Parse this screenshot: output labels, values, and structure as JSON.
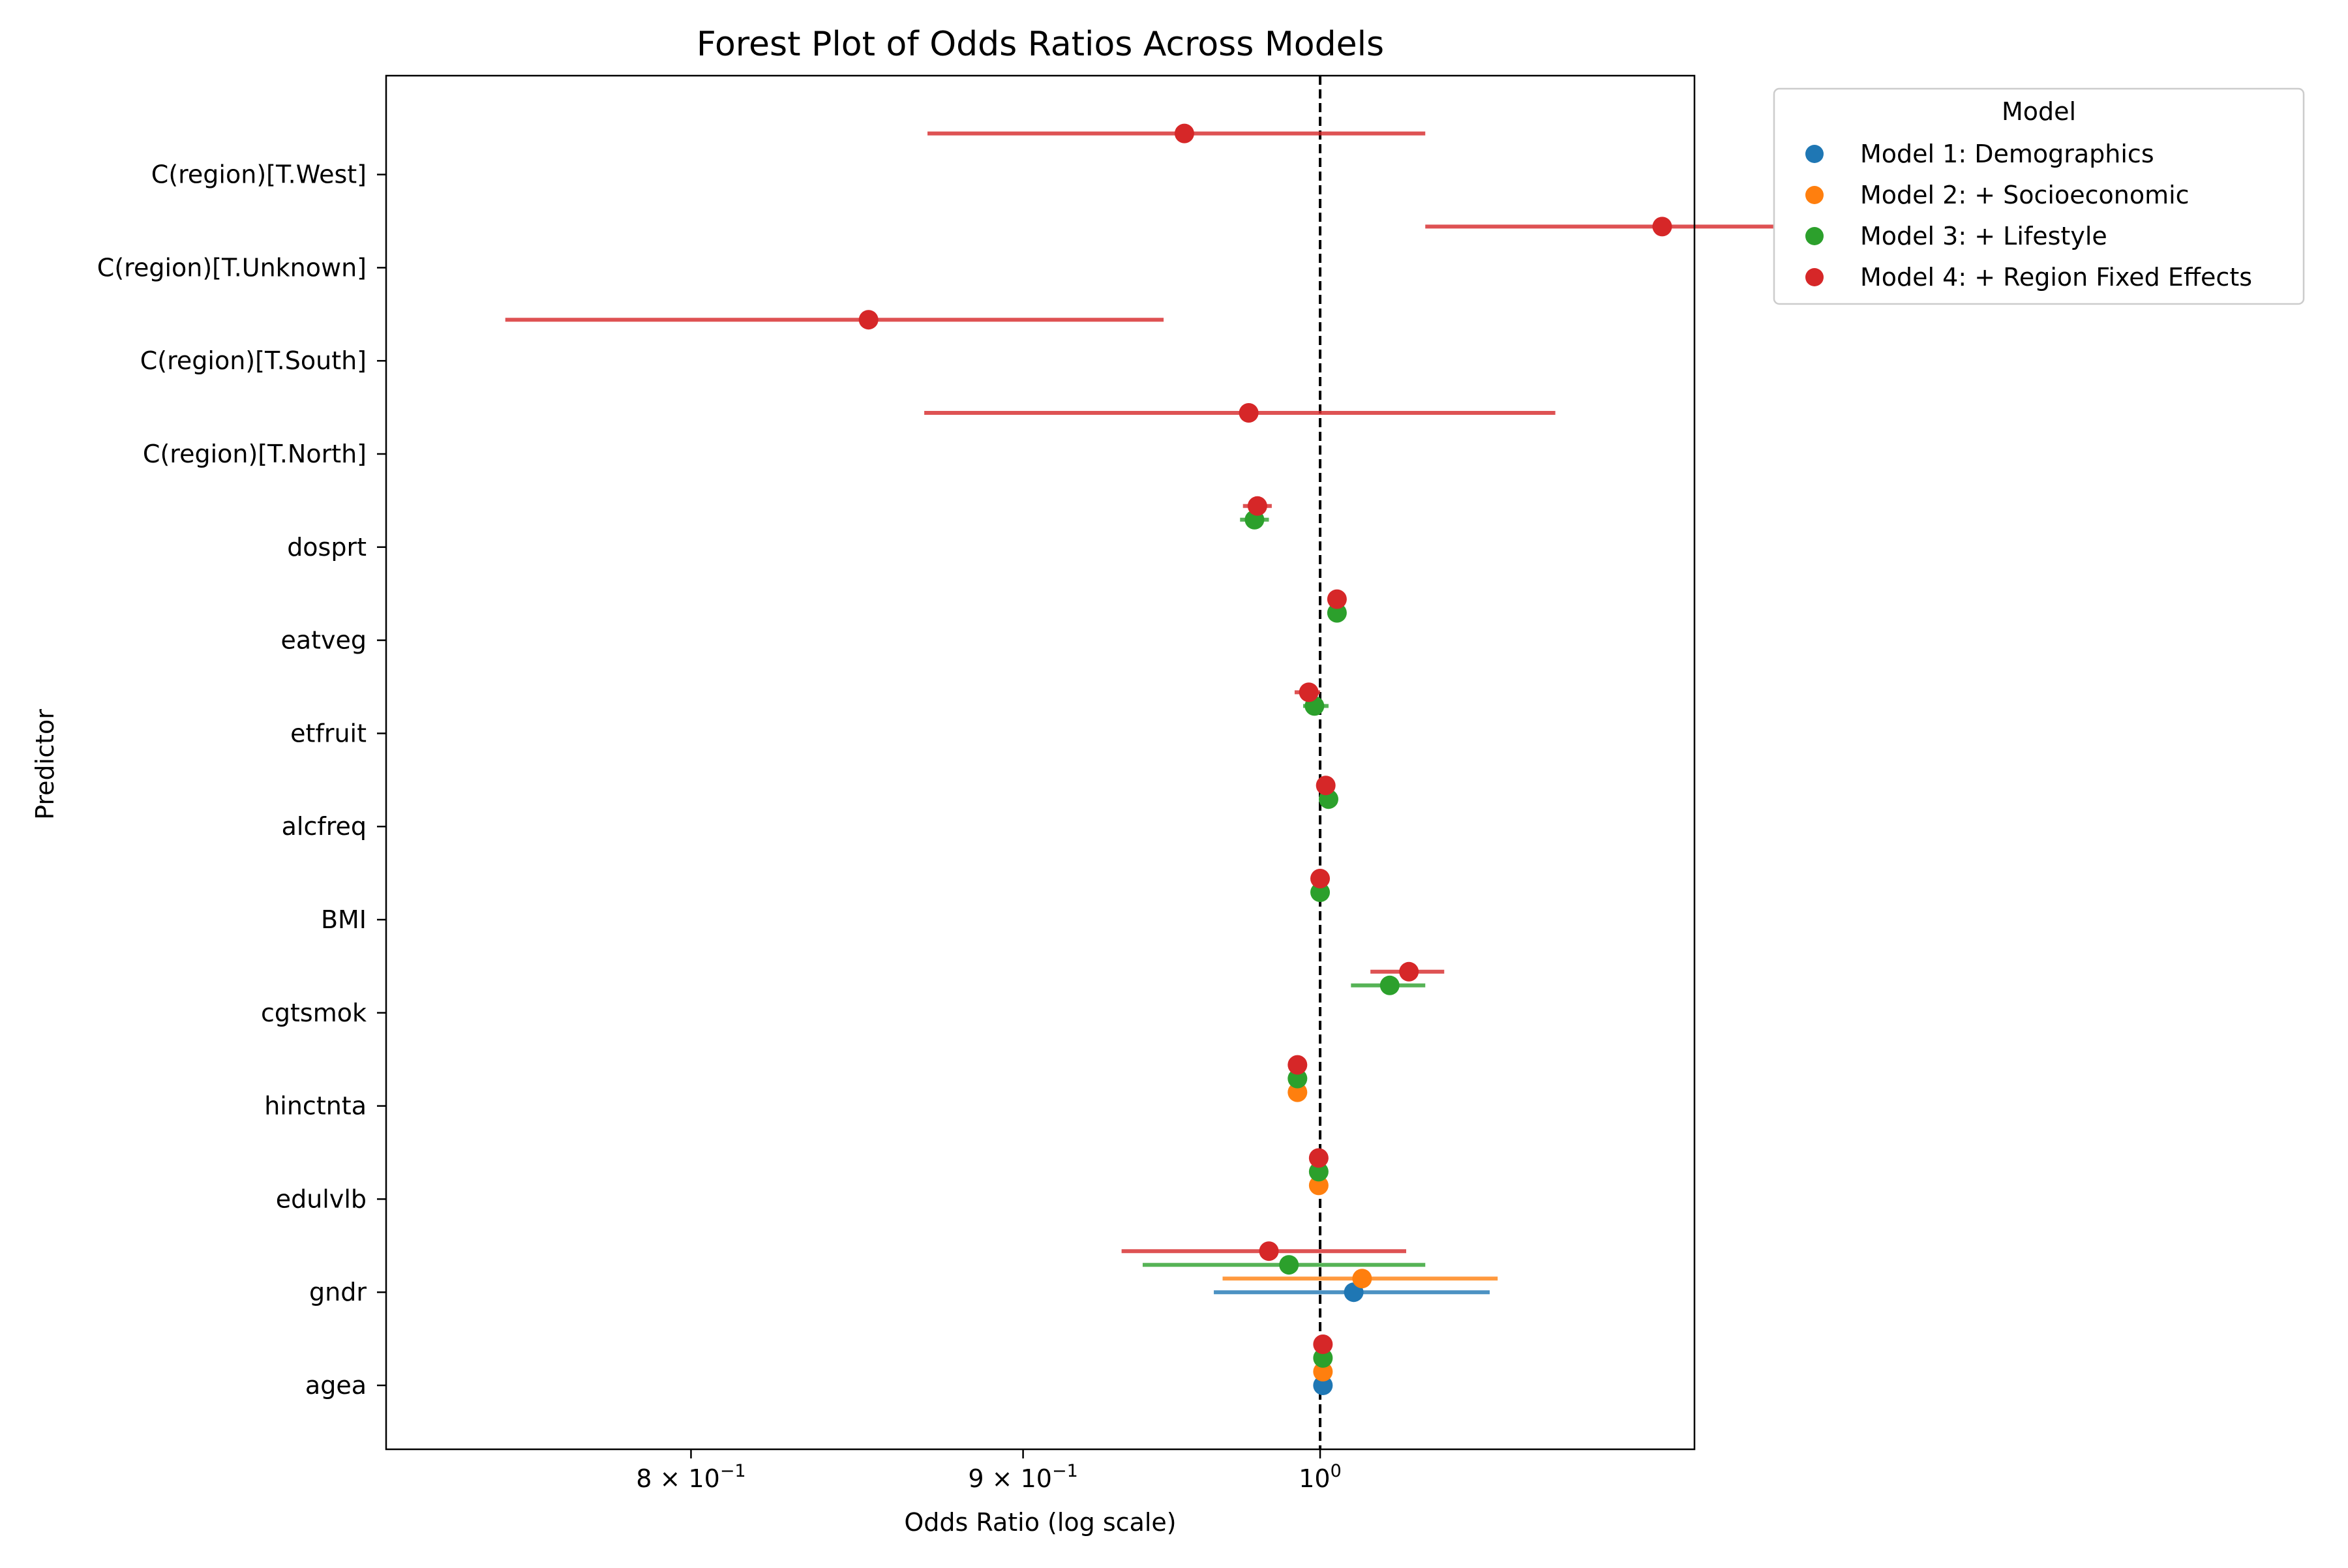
{
  "chart_data": {
    "type": "scatter",
    "title": "Forest Plot of Odds Ratios Across Models",
    "xlabel": "Odds Ratio (log scale)",
    "ylabel": "Predictor",
    "x_scale": "log",
    "xlim": [
      0.718,
      1.142
    ],
    "reference_line": 1.0,
    "x_ticks": [
      {
        "value": 0.8,
        "label": "8 × 10",
        "exp": "−1"
      },
      {
        "value": 0.9,
        "label": "9 × 10",
        "exp": "−1"
      },
      {
        "value": 1.0,
        "label": "10",
        "exp": "0"
      }
    ],
    "categories": [
      "agea",
      "gndr",
      "edulvlb",
      "hinctnta",
      "cgtsmok",
      "BMI",
      "alcfreq",
      "etfruit",
      "eatveg",
      "dosprt",
      "C(region)[T.North]",
      "C(region)[T.South]",
      "C(region)[T.Unknown]",
      "C(region)[T.West]"
    ],
    "legend": {
      "title": "Model",
      "position": "outside-right"
    },
    "series": [
      {
        "name": "Model 1: Demographics",
        "color": "#1f77b4",
        "points": [
          {
            "category": "agea",
            "or": 1.001,
            "lo": 1.0,
            "hi": 1.002
          },
          {
            "category": "gndr",
            "or": 1.012,
            "lo": 0.963,
            "hi": 1.062
          }
        ]
      },
      {
        "name": "Model 2: + Socioeconomic",
        "color": "#ff7f0e",
        "points": [
          {
            "category": "agea",
            "or": 1.001,
            "lo": 1.0,
            "hi": 1.002
          },
          {
            "category": "gndr",
            "or": 1.015,
            "lo": 0.966,
            "hi": 1.065
          },
          {
            "category": "edulvlb",
            "or": 0.9995,
            "lo": 0.999,
            "hi": 1.0
          },
          {
            "category": "hinctnta",
            "or": 0.992,
            "lo": 0.991,
            "hi": 0.993
          }
        ]
      },
      {
        "name": "Model 3: + Lifestyle",
        "color": "#2ca02c",
        "points": [
          {
            "category": "agea",
            "or": 1.001,
            "lo": 1.0,
            "hi": 1.002
          },
          {
            "category": "gndr",
            "or": 0.989,
            "lo": 0.939,
            "hi": 1.038
          },
          {
            "category": "edulvlb",
            "or": 0.9995,
            "lo": 0.999,
            "hi": 1.0
          },
          {
            "category": "hinctnta",
            "or": 0.992,
            "lo": 0.991,
            "hi": 0.993
          },
          {
            "category": "cgtsmok",
            "or": 1.025,
            "lo": 1.011,
            "hi": 1.038
          },
          {
            "category": "BMI",
            "or": 1.0,
            "lo": 0.999,
            "hi": 1.001
          },
          {
            "category": "alcfreq",
            "or": 1.003,
            "lo": 1.002,
            "hi": 1.004
          },
          {
            "category": "etfruit",
            "or": 0.998,
            "lo": 0.994,
            "hi": 1.003
          },
          {
            "category": "eatveg",
            "or": 1.006,
            "lo": 1.003,
            "hi": 1.009
          },
          {
            "category": "dosprt",
            "or": 0.977,
            "lo": 0.972,
            "hi": 0.982
          }
        ]
      },
      {
        "name": "Model 4: + Region Fixed Effects",
        "color": "#d62728",
        "points": [
          {
            "category": "agea",
            "or": 1.001,
            "lo": 1.0,
            "hi": 1.002
          },
          {
            "category": "gndr",
            "or": 0.982,
            "lo": 0.932,
            "hi": 1.031
          },
          {
            "category": "edulvlb",
            "or": 0.9995,
            "lo": 0.999,
            "hi": 1.0
          },
          {
            "category": "hinctnta",
            "or": 0.992,
            "lo": 0.991,
            "hi": 0.993
          },
          {
            "category": "cgtsmok",
            "or": 1.032,
            "lo": 1.018,
            "hi": 1.045
          },
          {
            "category": "BMI",
            "or": 1.0,
            "lo": 0.999,
            "hi": 1.001
          },
          {
            "category": "alcfreq",
            "or": 1.002,
            "lo": 1.001,
            "hi": 1.003
          },
          {
            "category": "etfruit",
            "or": 0.996,
            "lo": 0.991,
            "hi": 1.0
          },
          {
            "category": "eatveg",
            "or": 1.006,
            "lo": 1.003,
            "hi": 1.009
          },
          {
            "category": "dosprt",
            "or": 0.978,
            "lo": 0.973,
            "hi": 0.983
          },
          {
            "category": "C(region)[T.North]",
            "or": 0.975,
            "lo": 0.869,
            "hi": 1.087
          },
          {
            "category": "C(region)[T.South]",
            "or": 0.852,
            "lo": 0.749,
            "hi": 0.946
          },
          {
            "category": "C(region)[T.Unknown]",
            "or": 1.129,
            "lo": 1.038,
            "hi": 1.228
          },
          {
            "category": "C(region)[T.West]",
            "or": 0.953,
            "lo": 0.87,
            "hi": 1.038
          }
        ]
      }
    ]
  }
}
